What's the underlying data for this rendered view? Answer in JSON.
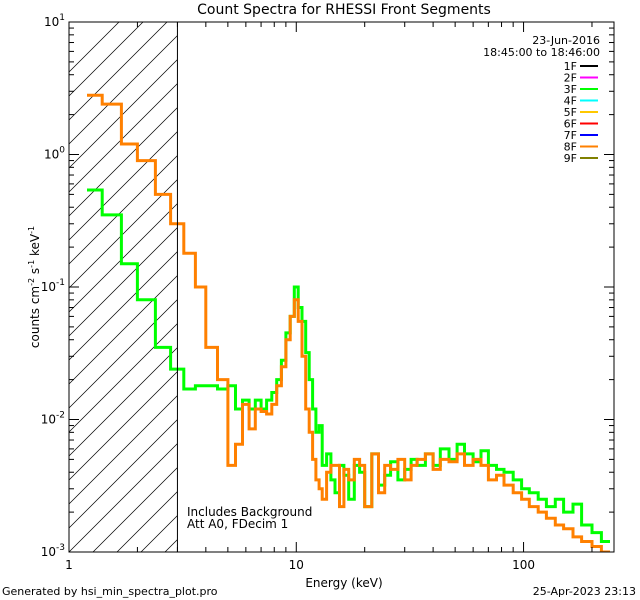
{
  "chart_data": {
    "type": "line",
    "title": "Count Spectra for RHESSI Front Segments",
    "xlabel": "Energy (keV)",
    "ylabel_parts": [
      "counts cm",
      "-2",
      " s",
      "-1",
      " keV",
      "-1"
    ],
    "xscale": "log",
    "yscale": "log",
    "xlim": [
      1,
      250
    ],
    "ylim": [
      0.001,
      10
    ],
    "x_ticks": [
      {
        "value": 1,
        "label": "1"
      },
      {
        "value": 10,
        "label": "10"
      },
      {
        "value": 100,
        "label": "100"
      }
    ],
    "y_ticks": [
      {
        "exp": -3,
        "label_base": "10",
        "label_exp": "-3"
      },
      {
        "exp": -2,
        "label_base": "10",
        "label_exp": "-2"
      },
      {
        "exp": -1,
        "label_base": "10",
        "label_exp": "-1"
      },
      {
        "exp": 0,
        "label_base": "10",
        "label_exp": "0"
      },
      {
        "exp": 1,
        "label_base": "10",
        "label_exp": "1"
      }
    ],
    "date": "23-Jun-2016",
    "time_range": "18:45:00 to 18:46:00",
    "attenuator_line_kev": 3.0,
    "annotations": [
      "Includes Background",
      "Att A0, FDecim 1"
    ],
    "legend": [
      {
        "label": "1F",
        "color": "#000000"
      },
      {
        "label": "2F",
        "color": "#ff00ff"
      },
      {
        "label": "3F",
        "color": "#00ff00"
      },
      {
        "label": "4F",
        "color": "#00ffff"
      },
      {
        "label": "5F",
        "color": "#ffc800"
      },
      {
        "label": "6F",
        "color": "#ff0000"
      },
      {
        "label": "7F",
        "color": "#0000ff"
      },
      {
        "label": "8F",
        "color": "#ff8000"
      },
      {
        "label": "9F",
        "color": "#808000"
      }
    ],
    "series": [
      {
        "name": "3F",
        "color": "#00ff00",
        "edges": [
          1.2,
          1.4,
          1.7,
          2.0,
          2.4,
          2.8,
          3.2,
          3.6,
          4.0,
          4.5,
          5.0,
          5.4,
          5.8,
          6.2,
          6.6,
          7.0,
          7.4,
          7.8,
          8.2,
          8.6,
          9.0,
          9.4,
          9.8,
          10.2,
          10.6,
          11.0,
          11.4,
          11.8,
          12.2,
          12.6,
          13.0,
          13.6,
          14.2,
          14.8,
          15.5,
          16.2,
          17.0,
          18.0,
          19.0,
          20.0,
          21.5,
          23.0,
          24.5,
          26.0,
          28.0,
          30.0,
          32.0,
          34.0,
          37.0,
          40.0,
          43.0,
          47.0,
          51.0,
          55.0,
          60.0,
          65.0,
          70.0,
          76.0,
          82.0,
          90.0,
          98.0,
          106.0,
          116.0,
          126.0,
          138.0,
          150.0,
          165.0,
          180.0,
          200.0,
          220.0,
          240.0
        ],
        "values": [
          0.54,
          0.35,
          0.15,
          0.08,
          0.035,
          0.024,
          0.017,
          0.018,
          0.018,
          0.017,
          0.018,
          0.012,
          0.014,
          0.012,
          0.014,
          0.012,
          0.014,
          0.016,
          0.02,
          0.028,
          0.045,
          0.06,
          0.1,
          0.07,
          0.055,
          0.032,
          0.02,
          0.012,
          0.008,
          0.009,
          0.0045,
          0.0055,
          0.0035,
          0.0028,
          0.0045,
          0.0038,
          0.0025,
          0.0045,
          0.004,
          0.0022,
          0.0055,
          0.0032,
          0.0038,
          0.0048,
          0.0035,
          0.0042,
          0.005,
          0.0045,
          0.0055,
          0.0045,
          0.006,
          0.005,
          0.0065,
          0.0055,
          0.0048,
          0.0058,
          0.0045,
          0.0042,
          0.004,
          0.0035,
          0.003,
          0.0028,
          0.0025,
          0.0022,
          0.0025,
          0.002,
          0.0023,
          0.0016,
          0.0014,
          0.0012
        ]
      },
      {
        "name": "8F",
        "color": "#ff8000",
        "edges": [
          1.2,
          1.4,
          1.7,
          2.0,
          2.4,
          2.8,
          3.2,
          3.6,
          4.0,
          4.5,
          5.0,
          5.4,
          5.8,
          6.2,
          6.6,
          7.0,
          7.4,
          7.8,
          8.2,
          8.6,
          9.0,
          9.4,
          9.8,
          10.2,
          10.6,
          11.0,
          11.4,
          11.8,
          12.2,
          12.6,
          13.0,
          13.6,
          14.2,
          14.8,
          15.5,
          16.2,
          17.0,
          18.0,
          19.0,
          20.0,
          21.5,
          23.0,
          24.5,
          26.0,
          28.0,
          30.0,
          32.0,
          34.0,
          37.0,
          40.0,
          43.0,
          47.0,
          51.0,
          55.0,
          60.0,
          65.0,
          70.0,
          76.0,
          82.0,
          90.0,
          98.0,
          106.0,
          116.0,
          126.0,
          138.0,
          150.0,
          165.0,
          180.0,
          200.0,
          220.0,
          240.0
        ],
        "values": [
          2.8,
          2.4,
          1.2,
          0.9,
          0.5,
          0.3,
          0.18,
          0.1,
          0.035,
          0.02,
          0.0045,
          0.0065,
          0.013,
          0.0085,
          0.012,
          0.0115,
          0.011,
          0.013,
          0.018,
          0.025,
          0.04,
          0.06,
          0.08,
          0.055,
          0.03,
          0.012,
          0.008,
          0.005,
          0.0035,
          0.003,
          0.0025,
          0.004,
          0.0045,
          0.0045,
          0.0022,
          0.0042,
          0.0035,
          0.005,
          0.0045,
          0.0022,
          0.0055,
          0.0028,
          0.0045,
          0.0042,
          0.005,
          0.0035,
          0.0045,
          0.005,
          0.0055,
          0.0042,
          0.005,
          0.0048,
          0.0055,
          0.0045,
          0.005,
          0.0045,
          0.0035,
          0.0038,
          0.0032,
          0.0028,
          0.0025,
          0.0022,
          0.002,
          0.0018,
          0.0016,
          0.0015,
          0.0013,
          0.0012,
          0.0011,
          0.001
        ]
      }
    ]
  },
  "footer": {
    "left": "Generated by hsi_min_spectra_plot.pro",
    "right": "25-Apr-2023 23:13"
  }
}
